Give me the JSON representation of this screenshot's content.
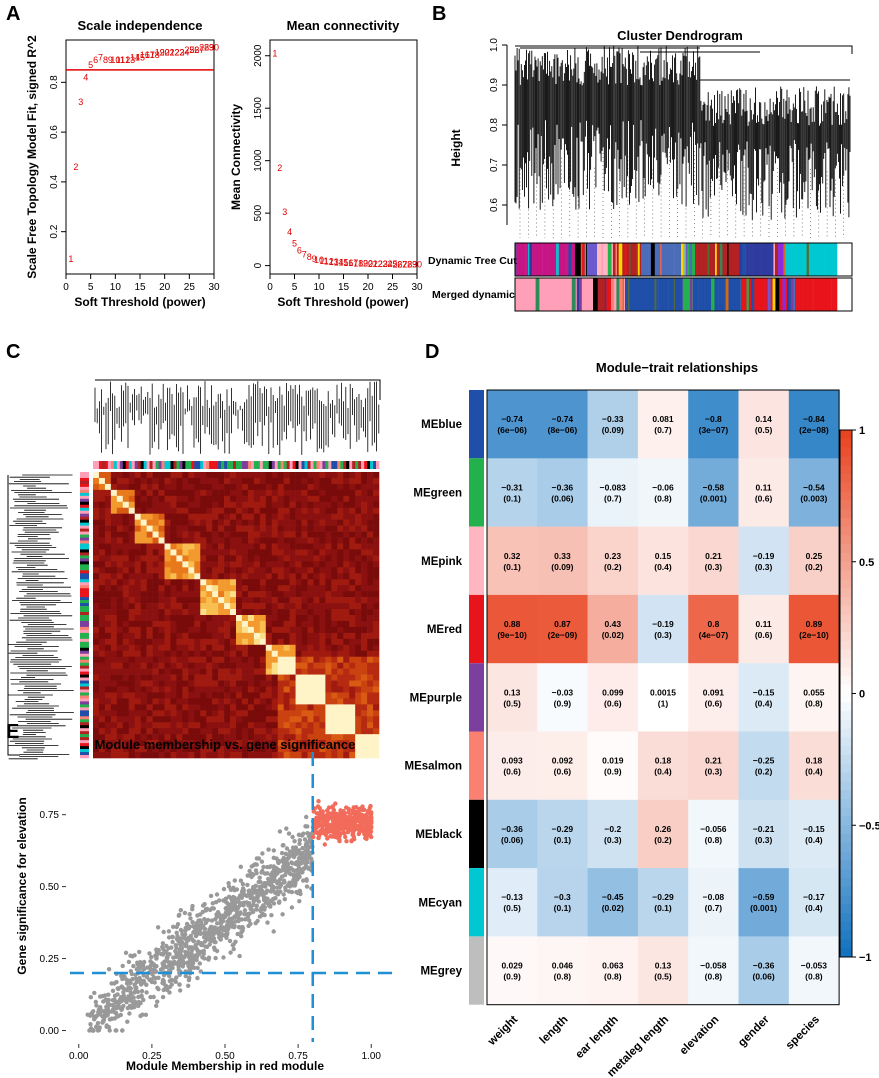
{
  "panels": {
    "a": "A",
    "b": "B",
    "c": "C",
    "d": "D",
    "e": "E"
  },
  "scale": {
    "title": "Scale independence",
    "xlabel": "Soft Threshold (power)",
    "ylabel": "Scale Free Topology Model Fit, signed R^2",
    "xticks": [
      "0",
      "5",
      "10",
      "15",
      "20",
      "25",
      "30"
    ],
    "yticks": [
      "0.2",
      "0.4",
      "0.6",
      "0.8"
    ]
  },
  "mean": {
    "title": "Mean connectivity",
    "xlabel": "Soft Threshold (power)",
    "ylabel": "Mean Connectivity",
    "xticks": [
      "0",
      "5",
      "10",
      "15",
      "20",
      "25",
      "30"
    ],
    "yticks": [
      "0",
      "500",
      "1000",
      "1500",
      "2000"
    ]
  },
  "dendro": {
    "title": "Cluster Dendrogram",
    "ylabel": "Height",
    "yticks": [
      "0.6",
      "0.7",
      "0.8",
      "0.9",
      "1.0"
    ],
    "row1": "Dynamic Tree Cut",
    "row2": "Merged dynamic"
  },
  "heat": {
    "title": "Module−trait relationships",
    "legend_ticks": [
      "1",
      "0.5",
      "0",
      "-0.5",
      "-1"
    ]
  },
  "scatter": {
    "title": "Module membership vs. gene significance",
    "xlabel": "Module Membership in red module",
    "ylabel": "Gene significance for elevation",
    "xticks": [
      "0.00",
      "0.25",
      "0.50",
      "0.75",
      "1.00"
    ],
    "yticks": [
      "0.00",
      "0.25",
      "0.50",
      "0.75"
    ]
  },
  "chart_data": [
    {
      "type": "scatter",
      "title": "Scale independence",
      "xlabel": "Soft Threshold (power)",
      "ylabel": "Scale Free Topology Model Fit, signed R^2",
      "xlim": [
        0,
        30
      ],
      "ylim": [
        0.03,
        0.97
      ],
      "points": [
        [
          1,
          0.09
        ],
        [
          2,
          0.46
        ],
        [
          3,
          0.72
        ],
        [
          4,
          0.82
        ],
        [
          5,
          0.87
        ],
        [
          6,
          0.89
        ],
        [
          7,
          0.9
        ],
        [
          8,
          0.89
        ],
        [
          9,
          0.89
        ],
        [
          10,
          0.89
        ],
        [
          11,
          0.89
        ],
        [
          12,
          0.89
        ],
        [
          13,
          0.89
        ],
        [
          14,
          0.9
        ],
        [
          15,
          0.9
        ],
        [
          16,
          0.91
        ],
        [
          17,
          0.91
        ],
        [
          18,
          0.91
        ],
        [
          19,
          0.92
        ],
        [
          20,
          0.92
        ],
        [
          21,
          0.92
        ],
        [
          22,
          0.92
        ],
        [
          23,
          0.92
        ],
        [
          24,
          0.92
        ],
        [
          25,
          0.93
        ],
        [
          26,
          0.93
        ],
        [
          27,
          0.93
        ],
        [
          28,
          0.94
        ],
        [
          29,
          0.94
        ],
        [
          30,
          0.94
        ]
      ],
      "hline": 0.85
    },
    {
      "type": "scatter",
      "title": "Mean connectivity",
      "xlabel": "Soft Threshold (power)",
      "ylabel": "Mean Connectivity",
      "xlim": [
        0,
        30
      ],
      "ylim": [
        -80,
        2150
      ],
      "points": [
        [
          1,
          2020
        ],
        [
          2,
          930
        ],
        [
          3,
          510
        ],
        [
          4,
          320
        ],
        [
          5,
          210
        ],
        [
          6,
          145
        ],
        [
          7,
          105
        ],
        [
          8,
          80
        ],
        [
          9,
          65
        ],
        [
          10,
          55
        ],
        [
          11,
          45
        ],
        [
          12,
          40
        ],
        [
          13,
          35
        ],
        [
          14,
          30
        ],
        [
          15,
          28
        ],
        [
          16,
          25
        ],
        [
          17,
          23
        ],
        [
          18,
          21
        ],
        [
          19,
          20
        ],
        [
          20,
          18
        ],
        [
          21,
          17
        ],
        [
          22,
          16
        ],
        [
          23,
          15
        ],
        [
          24,
          14
        ],
        [
          25,
          13
        ],
        [
          26,
          12
        ],
        [
          27,
          12
        ],
        [
          28,
          11
        ],
        [
          29,
          11
        ],
        [
          30,
          10
        ]
      ]
    },
    {
      "type": "heatmap",
      "title": "Module−trait relationships",
      "rows": [
        "MEblue",
        "MEgreen",
        "MEpink",
        "MEred",
        "MEpurple",
        "MEsalmon",
        "MEblack",
        "MEcyan",
        "MEgrey"
      ],
      "row_colors": [
        "#1f4fa8",
        "#22b14c",
        "#ffb6c1",
        "#e8141b",
        "#7b3f9e",
        "#fa8072",
        "#000000",
        "#00c8d2",
        "#bebebe"
      ],
      "columns": [
        "weight",
        "length",
        "ear length",
        "metaleg length",
        "elevation",
        "gender",
        "species"
      ],
      "values": [
        [
          -0.74,
          -0.74,
          -0.33,
          0.081,
          -0.8,
          0.14,
          -0.84
        ],
        [
          -0.31,
          -0.36,
          -0.083,
          -0.06,
          -0.58,
          0.11,
          -0.54
        ],
        [
          0.32,
          0.33,
          0.23,
          0.15,
          0.21,
          -0.19,
          0.25
        ],
        [
          0.88,
          0.87,
          0.43,
          -0.19,
          0.8,
          0.11,
          0.89
        ],
        [
          0.13,
          -0.03,
          0.099,
          0.0015,
          0.091,
          -0.15,
          0.055
        ],
        [
          0.093,
          0.092,
          0.019,
          0.18,
          0.21,
          -0.25,
          0.18
        ],
        [
          -0.36,
          -0.29,
          -0.2,
          0.26,
          -0.056,
          -0.21,
          -0.15
        ],
        [
          -0.13,
          -0.3,
          -0.45,
          -0.29,
          -0.08,
          -0.59,
          -0.17
        ],
        [
          0.029,
          0.046,
          0.063,
          0.13,
          -0.058,
          -0.36,
          -0.053
        ]
      ],
      "pvalues": [
        [
          "(6e−06)",
          "(8e−06)",
          "(0.09)",
          "(0.7)",
          "(3e−07)",
          "(0.5)",
          "(2e−08)"
        ],
        [
          "(0.1)",
          "(0.06)",
          "(0.7)",
          "(0.8)",
          "(0.001)",
          "(0.6)",
          "(0.003)"
        ],
        [
          "(0.1)",
          "(0.09)",
          "(0.2)",
          "(0.4)",
          "(0.3)",
          "(0.3)",
          "(0.2)"
        ],
        [
          "(9e−10)",
          "(2e−09)",
          "(0.02)",
          "(0.3)",
          "(4e−07)",
          "(0.6)",
          "(2e−10)"
        ],
        [
          "(0.5)",
          "(0.9)",
          "(0.6)",
          "(1)",
          "(0.6)",
          "(0.4)",
          "(0.8)"
        ],
        [
          "(0.6)",
          "(0.6)",
          "(0.9)",
          "(0.4)",
          "(0.3)",
          "(0.2)",
          "(0.4)"
        ],
        [
          "(0.06)",
          "(0.1)",
          "(0.3)",
          "(0.2)",
          "(0.8)",
          "(0.3)",
          "(0.4)"
        ],
        [
          "(0.5)",
          "(0.1)",
          "(0.02)",
          "(0.1)",
          "(0.7)",
          "(0.001)",
          "(0.4)"
        ],
        [
          "(0.9)",
          "(0.8)",
          "(0.8)",
          "(0.5)",
          "(0.8)",
          "(0.06)",
          "(0.8)"
        ]
      ],
      "color_range": [
        -1,
        1
      ]
    },
    {
      "type": "scatter",
      "title": "Module membership vs. gene significance",
      "xlabel": "Module Membership in red module",
      "ylabel": "Gene significance for elevation",
      "xlim": [
        -0.03,
        1.03
      ],
      "ylim": [
        -0.04,
        0.94
      ],
      "vline": 0.8,
      "hline": 0.2,
      "colors": {
        "above": "#f26b5b",
        "below": "#999999"
      }
    }
  ]
}
